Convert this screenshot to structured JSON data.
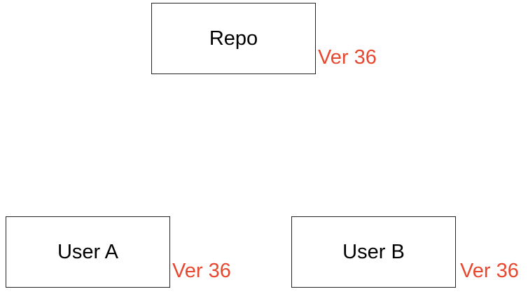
{
  "colors": {
    "version_text": "#e8472f",
    "box_border": "#222222",
    "box_text": "#000000",
    "background": "#ffffff"
  },
  "nodes": {
    "repo": {
      "label": "Repo",
      "version": "Ver 36"
    },
    "user_a": {
      "label": "User A",
      "version": "Ver 36"
    },
    "user_b": {
      "label": "User B",
      "version": "Ver 36"
    }
  }
}
